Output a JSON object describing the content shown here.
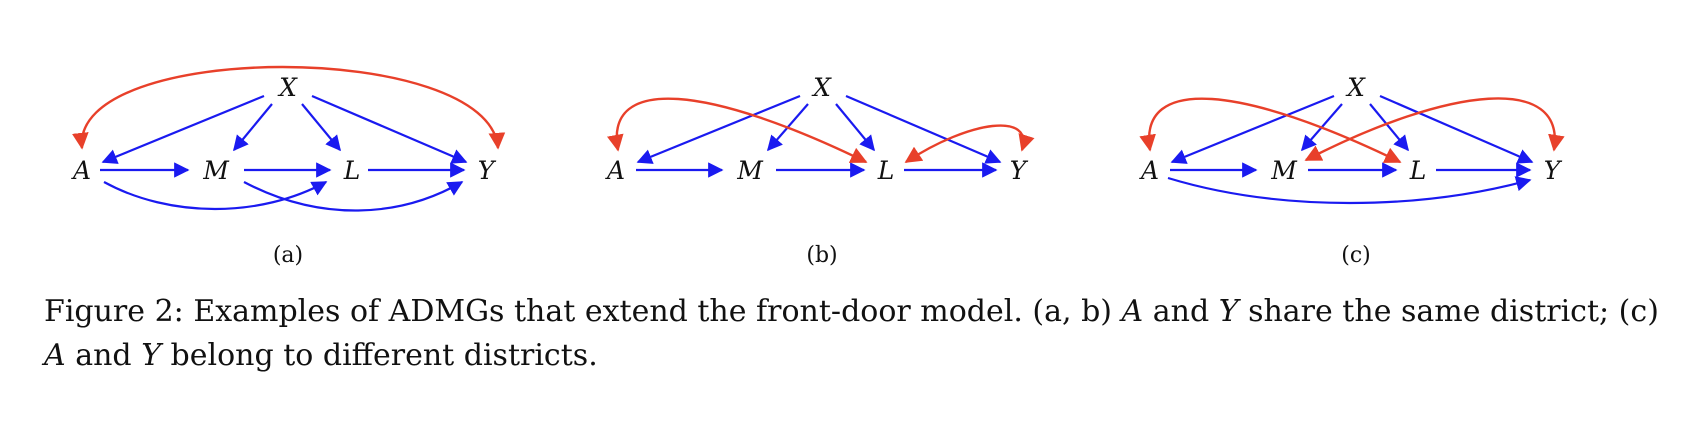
{
  "panels": [
    {
      "id": "a",
      "label": "(a)",
      "nodes": {
        "X": "X",
        "A": "A",
        "M": "M",
        "L": "L",
        "Y": "Y"
      }
    },
    {
      "id": "b",
      "label": "(b)",
      "nodes": {
        "X": "X",
        "A": "A",
        "M": "M",
        "L": "L",
        "Y": "Y"
      }
    },
    {
      "id": "c",
      "label": "(c)",
      "nodes": {
        "X": "X",
        "A": "A",
        "M": "M",
        "L": "L",
        "Y": "Y"
      }
    }
  ],
  "colors": {
    "directed_edge": "#1a1af0",
    "bidirected_edge": "#e8402a"
  },
  "caption": {
    "prefix": "Figure 2:",
    "t1": "Examples of ADMGs that extend the front-door model. (a, b)",
    "m1": "A",
    "t2": "and",
    "m2": "Y",
    "t3": "share the same district; (c)",
    "m3": "A",
    "t4": "and",
    "m4": "Y",
    "t5": "belong to different districts."
  }
}
